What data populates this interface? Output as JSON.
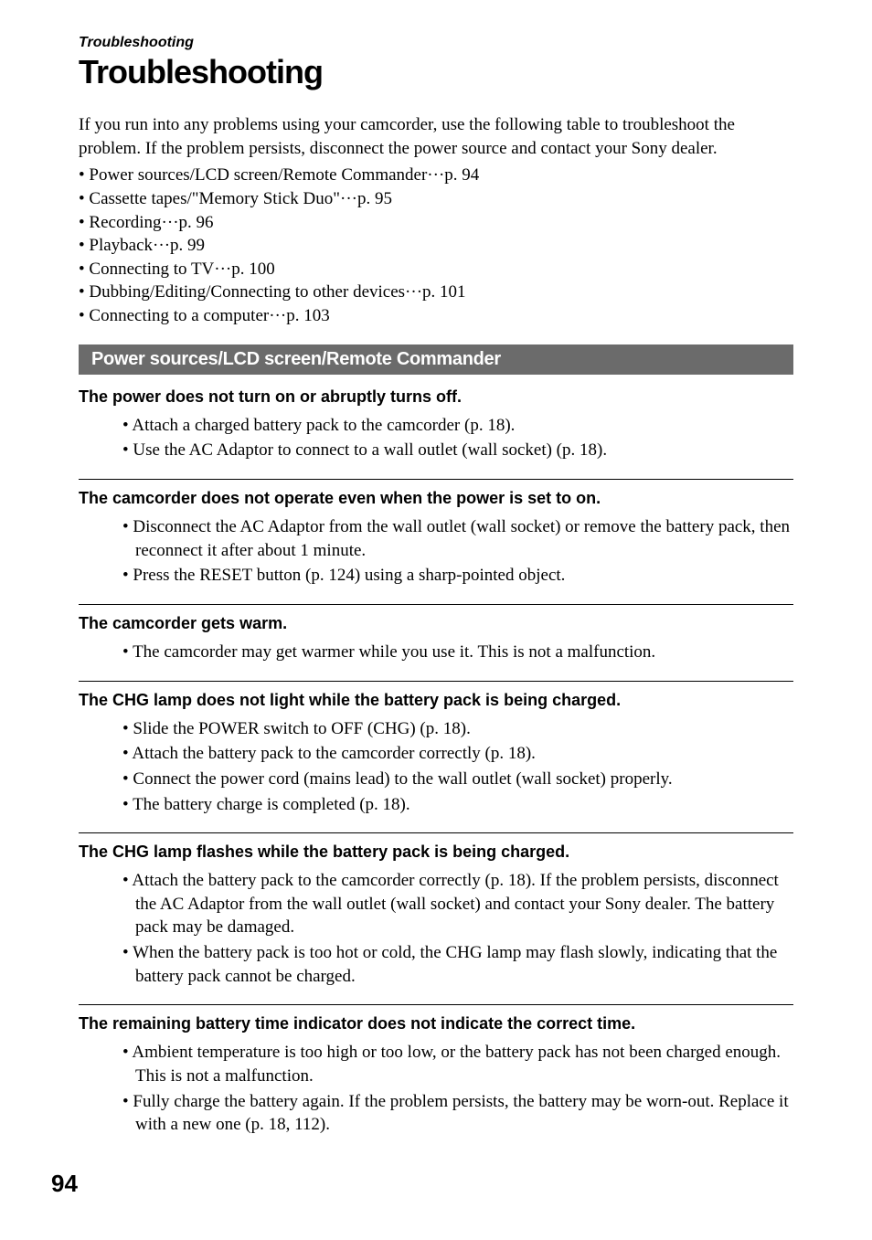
{
  "section_label": "Troubleshooting",
  "page_title": "Troubleshooting",
  "intro": "If you run into any problems using your camcorder, use the following table to troubleshoot the problem. If the problem persists, disconnect the power source and contact your Sony dealer.",
  "toc": [
    "Power sources/LCD screen/Remote Commander···p. 94",
    "Cassette tapes/\"Memory Stick Duo\"···p. 95",
    "Recording···p. 96",
    "Playback···p. 99",
    "Connecting to TV···p. 100",
    "Dubbing/Editing/Connecting to other devices···p. 101",
    "Connecting to a computer···p. 103"
  ],
  "section_bar": "Power sources/LCD screen/Remote Commander",
  "problems": [
    {
      "title": "The power does not turn on or abruptly turns off.",
      "answers": [
        "Attach a charged battery pack to the camcorder (p. 18).",
        "Use the AC Adaptor to connect to a wall outlet (wall socket) (p. 18)."
      ]
    },
    {
      "title": "The camcorder does not operate even when the power is set to on.",
      "answers": [
        "Disconnect the AC Adaptor from the wall outlet (wall socket) or remove the battery pack, then reconnect it after about 1 minute.",
        "Press the RESET button (p. 124) using a sharp-pointed object."
      ]
    },
    {
      "title": "The camcorder gets warm.",
      "answers": [
        "The camcorder may get warmer while you use it. This is not a malfunction."
      ]
    },
    {
      "title": "The CHG lamp does not light while the battery pack is being charged.",
      "answers": [
        "Slide the POWER switch to OFF (CHG) (p. 18).",
        "Attach the battery pack to the camcorder correctly (p. 18).",
        "Connect the power cord (mains lead) to the wall outlet (wall socket) properly.",
        "The battery charge is completed (p. 18)."
      ]
    },
    {
      "title": "The CHG lamp flashes while the battery pack is being charged.",
      "answers": [
        "Attach the battery pack to the camcorder correctly (p. 18). If the problem persists, disconnect the AC Adaptor from the wall outlet (wall socket) and contact your Sony dealer. The battery pack may be damaged.",
        "When the battery pack is too hot or cold, the CHG lamp may flash slowly, indicating that the battery pack cannot be charged."
      ]
    },
    {
      "title": "The remaining battery time indicator does not indicate the correct time.",
      "answers": [
        "Ambient temperature is too high or too low, or the battery pack has not been charged enough. This is not a malfunction.",
        "Fully charge the battery again. If the problem persists, the battery may be worn-out. Replace it with a new one (p. 18, 112)."
      ]
    }
  ],
  "page_number": "94",
  "colors": {
    "section_bar_bg": "#6b6b6b",
    "section_bar_fg": "#ffffff",
    "text": "#000000",
    "background": "#ffffff"
  },
  "typography": {
    "title_fontsize": 36,
    "section_label_fontsize": 16,
    "body_fontsize": 19,
    "problem_title_fontsize": 18,
    "section_bar_fontsize": 20,
    "page_number_fontsize": 26
  }
}
